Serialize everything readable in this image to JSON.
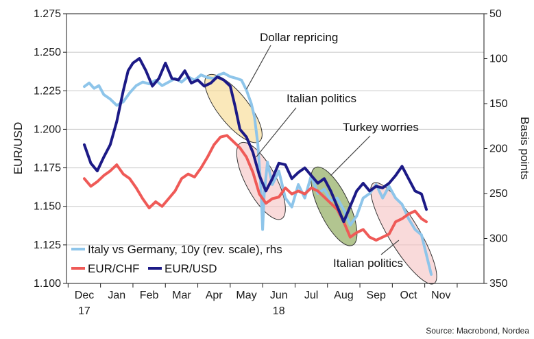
{
  "chart_data": {
    "type": "line",
    "source": "Source: Macrobond, Nordea",
    "y_left": {
      "label": "EUR/USD",
      "lim": [
        1.1,
        1.275
      ],
      "ticks": [
        "1.275",
        "1.250",
        "1.225",
        "1.200",
        "1.175",
        "1.150",
        "1.125",
        "1.100"
      ],
      "tick_values": [
        1.275,
        1.25,
        1.225,
        1.2,
        1.175,
        1.15,
        1.125,
        1.1
      ]
    },
    "y_right": {
      "label": "Basis points",
      "lim": [
        50,
        350
      ],
      "reversed": true,
      "ticks": [
        "50",
        "100",
        "150",
        "200",
        "250",
        "300",
        "350"
      ],
      "tick_values": [
        50,
        100,
        150,
        200,
        250,
        300,
        350
      ]
    },
    "x_axis": {
      "months": [
        "Dec",
        "Jan",
        "Feb",
        "Mar",
        "Apr",
        "May",
        "Jun",
        "Jul",
        "Aug",
        "Sep",
        "Oct",
        "Nov"
      ],
      "month_index": [
        0,
        1,
        2,
        3,
        4,
        5,
        6,
        7,
        8,
        9,
        10,
        11
      ],
      "years": [
        {
          "label": "17",
          "month_index": 0
        },
        {
          "label": "18",
          "month_index": 6
        }
      ]
    },
    "series": [
      {
        "name": "Italy vs Germany, 10y (rev. scale), rhs",
        "axis": "right",
        "color": "#8ec5ea",
        "points": [
          [
            0.0,
            131
          ],
          [
            0.15,
            127
          ],
          [
            0.3,
            133
          ],
          [
            0.45,
            130
          ],
          [
            0.6,
            140
          ],
          [
            0.8,
            145
          ],
          [
            1.0,
            152
          ],
          [
            1.2,
            148
          ],
          [
            1.4,
            138
          ],
          [
            1.6,
            130
          ],
          [
            1.8,
            126
          ],
          [
            2.0,
            128
          ],
          [
            2.2,
            124
          ],
          [
            2.4,
            130
          ],
          [
            2.6,
            126
          ],
          [
            2.8,
            122
          ],
          [
            3.0,
            126
          ],
          [
            3.2,
            120
          ],
          [
            3.4,
            124
          ],
          [
            3.6,
            118
          ],
          [
            3.8,
            121
          ],
          [
            4.0,
            122
          ],
          [
            4.15,
            118
          ],
          [
            4.3,
            116
          ],
          [
            4.5,
            120
          ],
          [
            4.7,
            122
          ],
          [
            4.85,
            124
          ],
          [
            5.0,
            135
          ],
          [
            5.15,
            150
          ],
          [
            5.25,
            165
          ],
          [
            5.35,
            195
          ],
          [
            5.45,
            245
          ],
          [
            5.5,
            290
          ],
          [
            5.55,
            250
          ],
          [
            5.65,
            215
          ],
          [
            5.8,
            240
          ],
          [
            6.0,
            225
          ],
          [
            6.2,
            255
          ],
          [
            6.4,
            265
          ],
          [
            6.6,
            240
          ],
          [
            6.8,
            255
          ],
          [
            7.0,
            230
          ],
          [
            7.2,
            250
          ],
          [
            7.4,
            245
          ],
          [
            7.6,
            258
          ],
          [
            7.8,
            255
          ],
          [
            8.0,
            268
          ],
          [
            8.2,
            285
          ],
          [
            8.4,
            275
          ],
          [
            8.6,
            255
          ],
          [
            8.8,
            250
          ],
          [
            9.0,
            240
          ],
          [
            9.2,
            255
          ],
          [
            9.4,
            242
          ],
          [
            9.6,
            255
          ],
          [
            9.8,
            262
          ],
          [
            10.0,
            278
          ],
          [
            10.2,
            290
          ],
          [
            10.4,
            296
          ],
          [
            10.55,
            318
          ],
          [
            10.7,
            340
          ]
        ]
      },
      {
        "name": "EUR/CHF",
        "axis": "left",
        "color": "#ef5a57",
        "points": [
          [
            0.0,
            1.168
          ],
          [
            0.2,
            1.163
          ],
          [
            0.4,
            1.166
          ],
          [
            0.6,
            1.17
          ],
          [
            0.8,
            1.173
          ],
          [
            1.0,
            1.177
          ],
          [
            1.2,
            1.171
          ],
          [
            1.4,
            1.168
          ],
          [
            1.6,
            1.162
          ],
          [
            1.8,
            1.155
          ],
          [
            2.0,
            1.149
          ],
          [
            2.2,
            1.153
          ],
          [
            2.4,
            1.15
          ],
          [
            2.6,
            1.155
          ],
          [
            2.8,
            1.16
          ],
          [
            3.0,
            1.168
          ],
          [
            3.2,
            1.171
          ],
          [
            3.4,
            1.169
          ],
          [
            3.6,
            1.175
          ],
          [
            3.8,
            1.182
          ],
          [
            4.0,
            1.19
          ],
          [
            4.2,
            1.195
          ],
          [
            4.4,
            1.196
          ],
          [
            4.6,
            1.192
          ],
          [
            4.8,
            1.188
          ],
          [
            5.0,
            1.182
          ],
          [
            5.2,
            1.172
          ],
          [
            5.4,
            1.158
          ],
          [
            5.6,
            1.152
          ],
          [
            5.8,
            1.155
          ],
          [
            6.0,
            1.156
          ],
          [
            6.2,
            1.162
          ],
          [
            6.4,
            1.158
          ],
          [
            6.6,
            1.16
          ],
          [
            6.8,
            1.158
          ],
          [
            7.0,
            1.162
          ],
          [
            7.2,
            1.16
          ],
          [
            7.4,
            1.156
          ],
          [
            7.6,
            1.152
          ],
          [
            7.8,
            1.148
          ],
          [
            8.0,
            1.14
          ],
          [
            8.2,
            1.13
          ],
          [
            8.4,
            1.133
          ],
          [
            8.6,
            1.135
          ],
          [
            8.8,
            1.13
          ],
          [
            9.0,
            1.128
          ],
          [
            9.2,
            1.13
          ],
          [
            9.4,
            1.132
          ],
          [
            9.6,
            1.14
          ],
          [
            9.8,
            1.142
          ],
          [
            10.0,
            1.145
          ],
          [
            10.2,
            1.147
          ],
          [
            10.4,
            1.142
          ],
          [
            10.55,
            1.14
          ]
        ]
      },
      {
        "name": "EUR/USD",
        "axis": "left",
        "color": "#1c1a86",
        "points": [
          [
            0.0,
            1.19
          ],
          [
            0.2,
            1.178
          ],
          [
            0.4,
            1.173
          ],
          [
            0.6,
            1.182
          ],
          [
            0.8,
            1.19
          ],
          [
            1.0,
            1.205
          ],
          [
            1.2,
            1.225
          ],
          [
            1.35,
            1.238
          ],
          [
            1.5,
            1.243
          ],
          [
            1.7,
            1.246
          ],
          [
            1.9,
            1.238
          ],
          [
            2.1,
            1.228
          ],
          [
            2.3,
            1.233
          ],
          [
            2.5,
            1.243
          ],
          [
            2.7,
            1.233
          ],
          [
            2.9,
            1.232
          ],
          [
            3.1,
            1.238
          ],
          [
            3.3,
            1.23
          ],
          [
            3.5,
            1.232
          ],
          [
            3.7,
            1.228
          ],
          [
            3.9,
            1.23
          ],
          [
            4.1,
            1.234
          ],
          [
            4.3,
            1.232
          ],
          [
            4.5,
            1.228
          ],
          [
            4.65,
            1.215
          ],
          [
            4.8,
            1.2
          ],
          [
            5.0,
            1.195
          ],
          [
            5.2,
            1.185
          ],
          [
            5.4,
            1.17
          ],
          [
            5.6,
            1.16
          ],
          [
            5.8,
            1.168
          ],
          [
            6.0,
            1.178
          ],
          [
            6.2,
            1.177
          ],
          [
            6.4,
            1.168
          ],
          [
            6.6,
            1.172
          ],
          [
            6.8,
            1.175
          ],
          [
            7.0,
            1.17
          ],
          [
            7.2,
            1.165
          ],
          [
            7.4,
            1.168
          ],
          [
            7.6,
            1.16
          ],
          [
            7.8,
            1.15
          ],
          [
            8.0,
            1.14
          ],
          [
            8.2,
            1.15
          ],
          [
            8.4,
            1.16
          ],
          [
            8.6,
            1.165
          ],
          [
            8.8,
            1.16
          ],
          [
            9.0,
            1.163
          ],
          [
            9.2,
            1.162
          ],
          [
            9.4,
            1.165
          ],
          [
            9.6,
            1.17
          ],
          [
            9.8,
            1.176
          ],
          [
            10.0,
            1.168
          ],
          [
            10.2,
            1.16
          ],
          [
            10.4,
            1.158
          ],
          [
            10.55,
            1.148
          ]
        ]
      }
    ],
    "annotations": [
      {
        "label": "Dollar repricing",
        "target": [
          5.0,
          1.226
        ]
      },
      {
        "label": "Italian politics",
        "target": [
          5.3,
          1.182
        ]
      },
      {
        "label": "Turkey worries",
        "target": [
          7.6,
          1.17
        ]
      },
      {
        "label": "Italian politics",
        "target": [
          9.7,
          1.128
        ]
      }
    ],
    "highlights": [
      {
        "fill": "#f6d98c",
        "x_range": [
          3.9,
          5.3
        ],
        "y_range": [
          1.195,
          1.232
        ]
      },
      {
        "fill": "#f5c1c1",
        "x_range": [
          4.9,
          6.0
        ],
        "y_range": [
          1.145,
          1.188
        ]
      },
      {
        "fill": "#7f9f46",
        "x_range": [
          7.2,
          8.2
        ],
        "y_range": [
          1.128,
          1.172
        ]
      },
      {
        "fill": "#f5c1c1",
        "x_range": [
          9.0,
          10.7
        ],
        "y_range": [
          1.103,
          1.162
        ]
      }
    ]
  }
}
